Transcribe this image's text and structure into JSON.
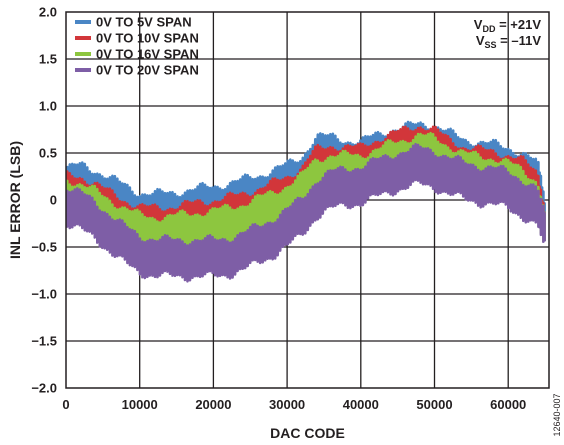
{
  "chart_data": {
    "type": "line",
    "xlabel": "DAC CODE",
    "ylabel": "INL ERROR (LSB)",
    "xlim": [
      0,
      65535
    ],
    "ylim": [
      -2.0,
      2.0
    ],
    "x_ticks": [
      0,
      10000,
      20000,
      30000,
      40000,
      50000,
      60000
    ],
    "y_ticks": [
      -2.0,
      -1.5,
      -1.0,
      -0.5,
      0,
      0.5,
      1.0,
      1.5,
      2.0
    ],
    "x_tick_labels": [
      "0",
      "10000",
      "20000",
      "30000",
      "40000",
      "50000",
      "60000"
    ],
    "y_tick_labels": [
      "−2.0",
      "−1.5",
      "−1.0",
      "−0.5",
      "0",
      "0.5",
      "1.0",
      "1.5",
      "2.0"
    ],
    "grid": true,
    "legend_position": "top-left",
    "band_amplitude": 0.17,
    "series": [
      {
        "name": "0V TO 5V SPAN",
        "color": "#4a86c5",
        "x": [
          0,
          2000,
          4000,
          6000,
          8000,
          10000,
          12000,
          14000,
          16000,
          18000,
          20000,
          22000,
          24000,
          26000,
          28000,
          30000,
          32000,
          33000,
          34000,
          36000,
          38000,
          40000,
          42000,
          44000,
          46000,
          48000,
          50000,
          52000,
          54000,
          56000,
          58000,
          60000,
          62000,
          64000,
          65000
        ],
        "y": [
          0.14,
          0.18,
          0.12,
          0.04,
          -0.04,
          -0.12,
          -0.13,
          -0.12,
          -0.1,
          -0.07,
          -0.05,
          -0.02,
          0.02,
          0.06,
          0.12,
          0.18,
          0.26,
          0.38,
          0.48,
          0.48,
          0.44,
          0.42,
          0.5,
          0.55,
          0.58,
          0.62,
          0.6,
          0.52,
          0.45,
          0.42,
          0.4,
          0.36,
          0.3,
          0.2,
          -0.2
        ]
      },
      {
        "name": "0V TO 10V SPAN",
        "color": "#d2363a",
        "x": [
          0,
          2000,
          4000,
          6000,
          8000,
          10000,
          12000,
          14000,
          16000,
          18000,
          20000,
          22000,
          24000,
          26000,
          28000,
          30000,
          32000,
          33000,
          34000,
          36000,
          38000,
          40000,
          42000,
          44000,
          46000,
          48000,
          50000,
          52000,
          54000,
          56000,
          58000,
          60000,
          62000,
          64000,
          65000
        ],
        "y": [
          0.06,
          0.05,
          -0.02,
          -0.12,
          -0.2,
          -0.27,
          -0.28,
          -0.27,
          -0.25,
          -0.22,
          -0.2,
          -0.17,
          -0.13,
          -0.08,
          -0.02,
          0.05,
          0.15,
          0.26,
          0.34,
          0.38,
          0.37,
          0.36,
          0.44,
          0.5,
          0.55,
          0.6,
          0.55,
          0.45,
          0.37,
          0.34,
          0.32,
          0.28,
          0.22,
          0.1,
          -0.25
        ]
      },
      {
        "name": "0V TO 16V SPAN",
        "color": "#8dc63f",
        "x": [
          0,
          2000,
          4000,
          6000,
          8000,
          10000,
          12000,
          14000,
          16000,
          18000,
          20000,
          22000,
          24000,
          26000,
          28000,
          30000,
          32000,
          33000,
          34000,
          36000,
          38000,
          40000,
          42000,
          44000,
          46000,
          48000,
          50000,
          52000,
          54000,
          56000,
          58000,
          60000,
          62000,
          64000,
          65000
        ],
        "y": [
          0.02,
          -0.02,
          -0.1,
          -0.2,
          -0.28,
          -0.36,
          -0.38,
          -0.37,
          -0.35,
          -0.33,
          -0.31,
          -0.28,
          -0.24,
          -0.18,
          -0.12,
          -0.04,
          0.06,
          0.16,
          0.24,
          0.28,
          0.28,
          0.28,
          0.34,
          0.4,
          0.45,
          0.5,
          0.46,
          0.38,
          0.3,
          0.27,
          0.25,
          0.2,
          0.12,
          0.0,
          -0.3
        ]
      },
      {
        "name": "0V TO 20V SPAN",
        "color": "#7e5ea6",
        "x": [
          0,
          2000,
          4000,
          6000,
          8000,
          10000,
          12000,
          14000,
          16000,
          18000,
          20000,
          22000,
          24000,
          26000,
          28000,
          30000,
          32000,
          33000,
          34000,
          36000,
          38000,
          40000,
          42000,
          44000,
          46000,
          48000,
          50000,
          52000,
          54000,
          56000,
          58000,
          60000,
          62000,
          64000,
          65000
        ],
        "y": [
          -0.05,
          -0.12,
          -0.22,
          -0.35,
          -0.48,
          -0.58,
          -0.61,
          -0.62,
          -0.62,
          -0.62,
          -0.62,
          -0.6,
          -0.55,
          -0.48,
          -0.4,
          -0.3,
          -0.18,
          -0.08,
          0.02,
          0.1,
          0.14,
          0.16,
          0.22,
          0.28,
          0.33,
          0.36,
          0.33,
          0.26,
          0.2,
          0.17,
          0.15,
          0.1,
          0.02,
          -0.08,
          -0.35
        ]
      }
    ],
    "annotations": {
      "vdd": {
        "main": "V",
        "sub": "DD",
        "rest": " = +21V"
      },
      "vss": {
        "main": "V",
        "sub": "SS",
        "rest": " = –11V"
      }
    },
    "figure_id": "12640-007"
  }
}
